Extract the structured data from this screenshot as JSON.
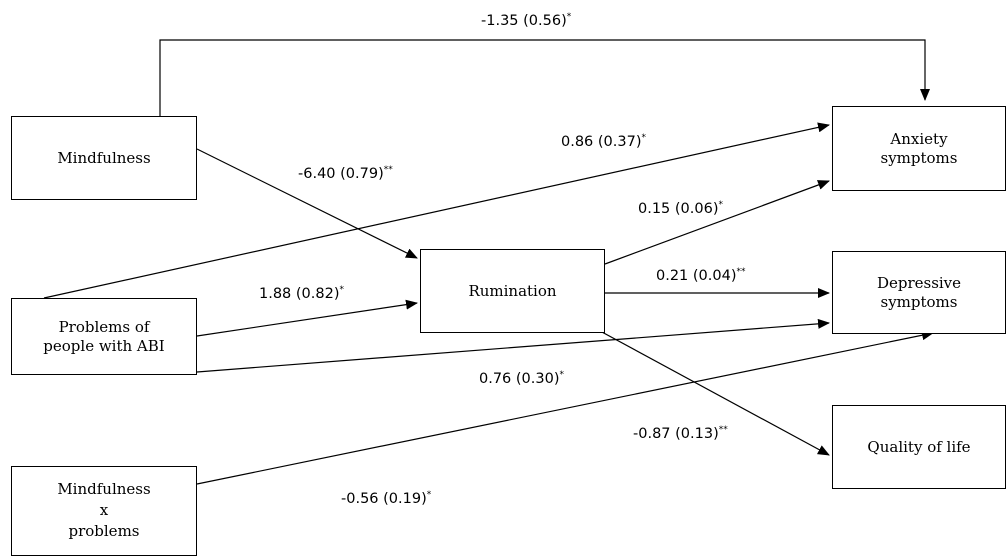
{
  "nodes": {
    "mindfulness": [
      "Mindfulness"
    ],
    "problems": [
      "Problems of",
      "people with ABI"
    ],
    "interaction": [
      "Mindfulness",
      "x",
      "problems"
    ],
    "rumination": [
      "Rumination"
    ],
    "anxiety": [
      "Anxiety",
      "symptoms"
    ],
    "depressive": [
      "Depressive",
      "symptoms"
    ],
    "quality": [
      "Quality of life"
    ]
  },
  "paths": {
    "mind_anx": {
      "value": "-1.35 (0.56)",
      "sig": "*"
    },
    "prob_anx": {
      "value": "0.86 (0.37)",
      "sig": "*"
    },
    "mind_rum": {
      "value": "-6.40 (0.79)",
      "sig": "**"
    },
    "rum_anx": {
      "value": "0.15 (0.06)",
      "sig": "*"
    },
    "prob_rum": {
      "value": "1.88 (0.82)",
      "sig": "*"
    },
    "rum_dep": {
      "value": "0.21 (0.04)",
      "sig": "**"
    },
    "prob_dep": {
      "value": "0.76 (0.30)",
      "sig": "*"
    },
    "rum_qol": {
      "value": "-0.87 (0.13)",
      "sig": "**"
    },
    "inter_dep": {
      "value": "-0.56 (0.19)",
      "sig": "*"
    }
  }
}
